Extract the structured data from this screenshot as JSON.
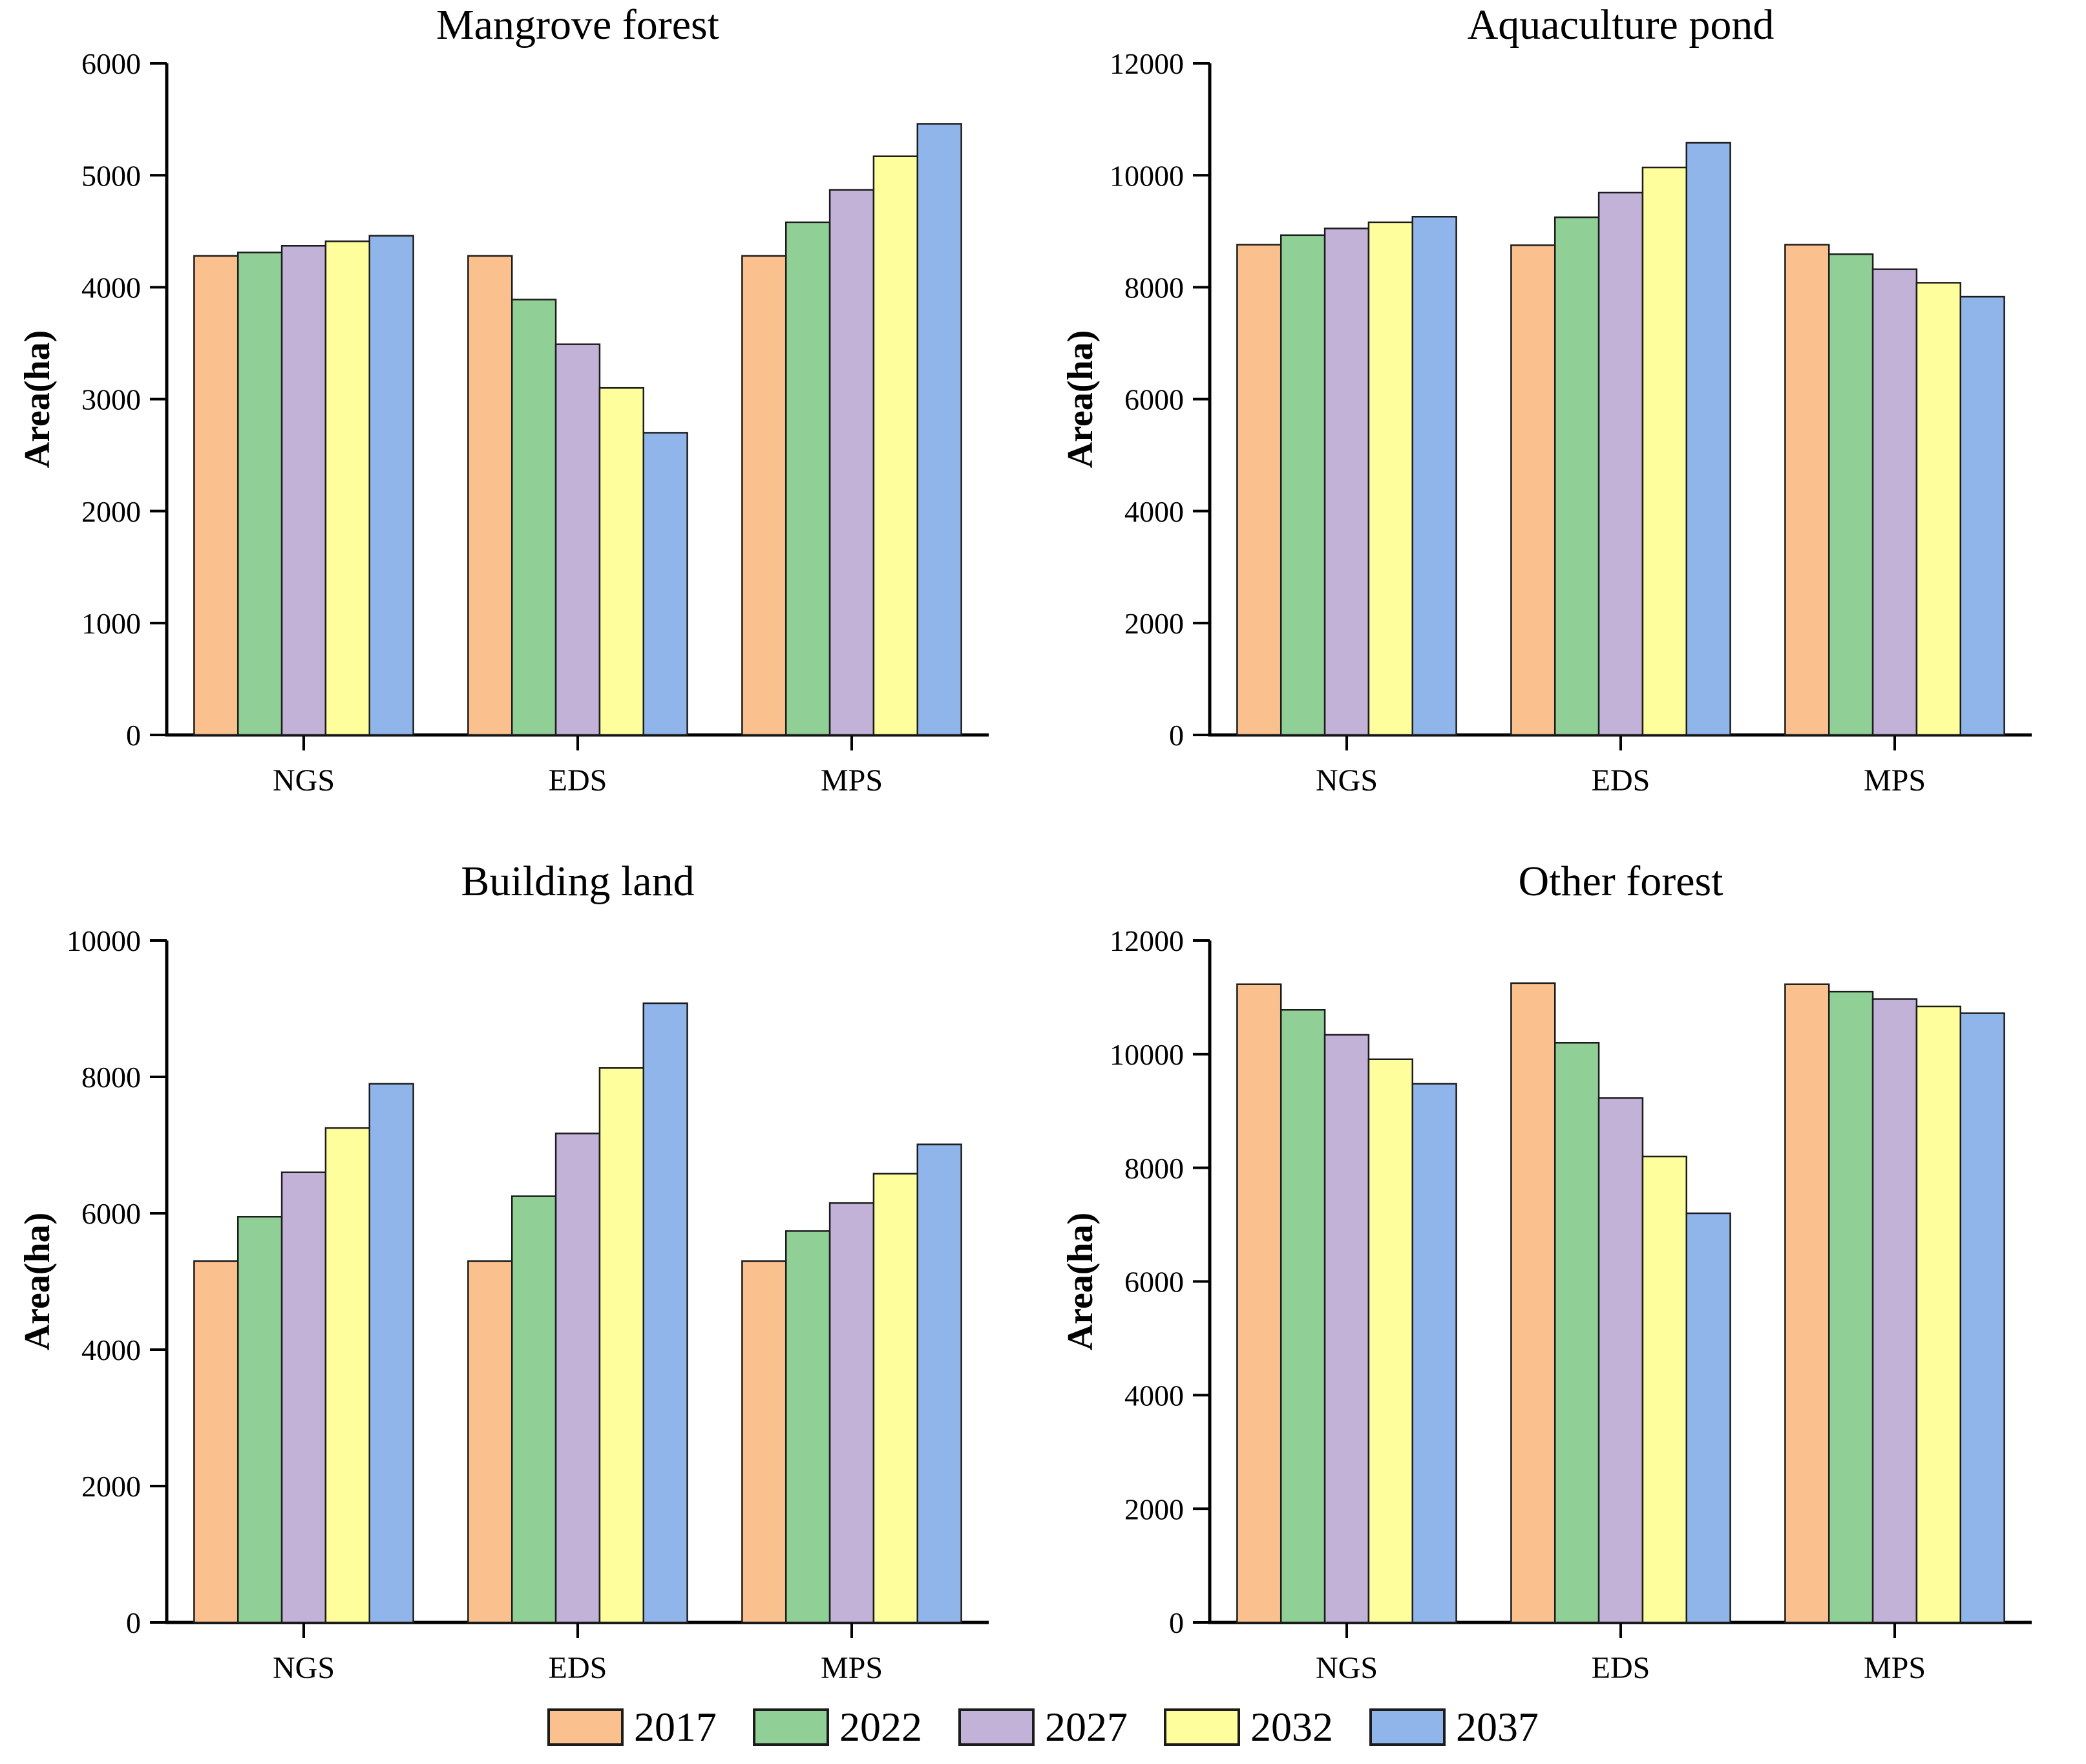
{
  "figure": {
    "background": "#ffffff",
    "axis_color": "#000000",
    "bar_edge_color": "#1c1c1c"
  },
  "legend": {
    "items": [
      {
        "label": "2017",
        "color": "#FAC08E"
      },
      {
        "label": "2022",
        "color": "#90D097"
      },
      {
        "label": "2027",
        "color": "#C2B2D8"
      },
      {
        "label": "2032",
        "color": "#FEFE9C"
      },
      {
        "label": "2037",
        "color": "#90B5EB"
      }
    ]
  },
  "chart_data": [
    {
      "type": "bar",
      "title": "Mangrove forest",
      "ylabel": "Area(ha)",
      "xlabel": "",
      "categories": [
        "NGS",
        "EDS",
        "MPS"
      ],
      "series": [
        {
          "name": "2017",
          "color": "#FAC08E",
          "values": [
            4280,
            4280,
            4280
          ]
        },
        {
          "name": "2022",
          "color": "#90D097",
          "values": [
            4310,
            3890,
            4580
          ]
        },
        {
          "name": "2027",
          "color": "#C2B2D8",
          "values": [
            4370,
            3490,
            4870
          ]
        },
        {
          "name": "2032",
          "color": "#FEFE9C",
          "values": [
            4410,
            3100,
            5170
          ]
        },
        {
          "name": "2037",
          "color": "#90B5EB",
          "values": [
            4460,
            2700,
            5460
          ]
        }
      ],
      "ylim": [
        0,
        6000
      ],
      "ytick_step": 1000,
      "grid": false,
      "legend_position": "shared-bottom"
    },
    {
      "type": "bar",
      "title": "Aquaculture pond",
      "ylabel": "Area(ha)",
      "xlabel": "",
      "categories": [
        "NGS",
        "EDS",
        "MPS"
      ],
      "series": [
        {
          "name": "2017",
          "color": "#FAC08E",
          "values": [
            8760,
            8750,
            8760
          ]
        },
        {
          "name": "2022",
          "color": "#90D097",
          "values": [
            8930,
            9250,
            8590
          ]
        },
        {
          "name": "2027",
          "color": "#C2B2D8",
          "values": [
            9050,
            9690,
            8320
          ]
        },
        {
          "name": "2032",
          "color": "#FEFE9C",
          "values": [
            9160,
            10140,
            8080
          ]
        },
        {
          "name": "2037",
          "color": "#90B5EB",
          "values": [
            9260,
            10580,
            7830
          ]
        }
      ],
      "ylim": [
        0,
        12000
      ],
      "ytick_step": 2000,
      "grid": false,
      "legend_position": "shared-bottom"
    },
    {
      "type": "bar",
      "title": "Building land",
      "ylabel": "Area(ha)",
      "xlabel": "",
      "categories": [
        "NGS",
        "EDS",
        "MPS"
      ],
      "series": [
        {
          "name": "2017",
          "color": "#FAC08E",
          "values": [
            5300,
            5300,
            5300
          ]
        },
        {
          "name": "2022",
          "color": "#90D097",
          "values": [
            5950,
            6250,
            5740
          ]
        },
        {
          "name": "2027",
          "color": "#C2B2D8",
          "values": [
            6600,
            7170,
            6150
          ]
        },
        {
          "name": "2032",
          "color": "#FEFE9C",
          "values": [
            7250,
            8130,
            6580
          ]
        },
        {
          "name": "2037",
          "color": "#90B5EB",
          "values": [
            7900,
            9080,
            7010
          ]
        }
      ],
      "ylim": [
        0,
        10000
      ],
      "ytick_step": 2000,
      "grid": false,
      "legend_position": "shared-bottom"
    },
    {
      "type": "bar",
      "title": "Other forest",
      "ylabel": "Area(ha)",
      "xlabel": "",
      "categories": [
        "NGS",
        "EDS",
        "MPS"
      ],
      "series": [
        {
          "name": "2017",
          "color": "#FAC08E",
          "values": [
            11230,
            11250,
            11230
          ]
        },
        {
          "name": "2022",
          "color": "#90D097",
          "values": [
            10780,
            10200,
            11100
          ]
        },
        {
          "name": "2027",
          "color": "#C2B2D8",
          "values": [
            10340,
            9230,
            10970
          ]
        },
        {
          "name": "2032",
          "color": "#FEFE9C",
          "values": [
            9910,
            8200,
            10840
          ]
        },
        {
          "name": "2037",
          "color": "#90B5EB",
          "values": [
            9480,
            7200,
            10720
          ]
        }
      ],
      "ylim": [
        0,
        12000
      ],
      "ytick_step": 2000,
      "grid": false,
      "legend_position": "shared-bottom"
    }
  ]
}
